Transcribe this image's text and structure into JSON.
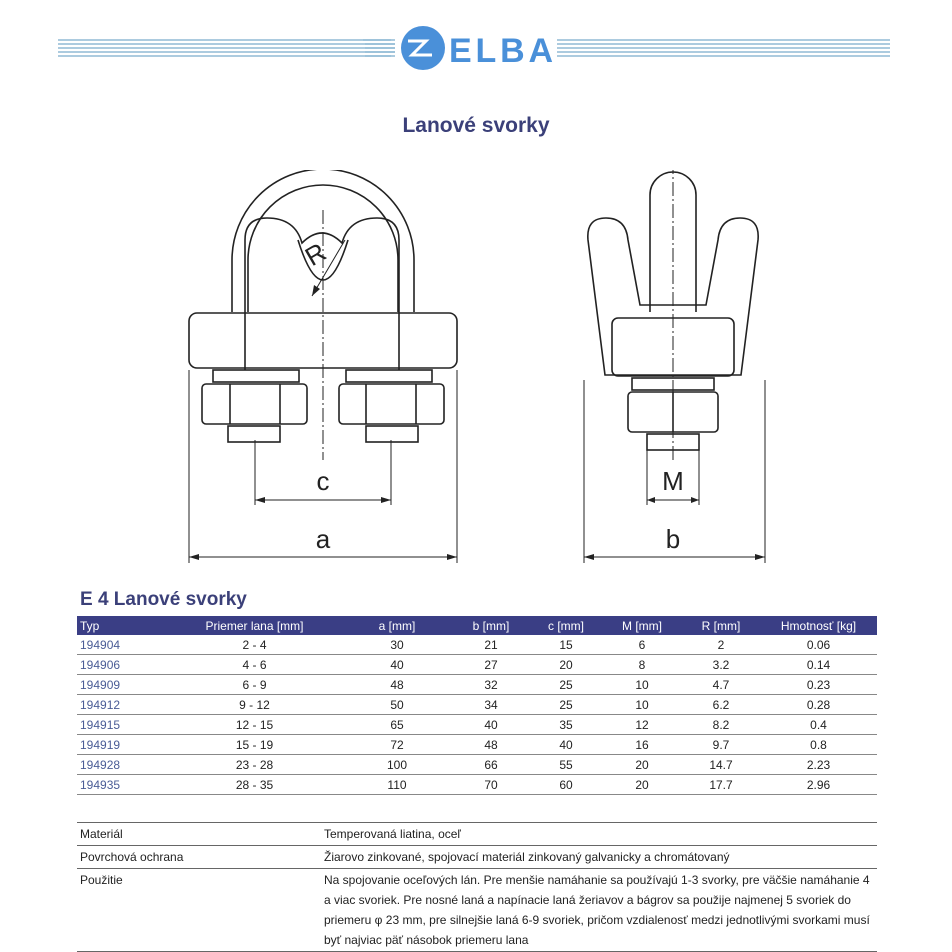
{
  "brand": {
    "name": "ELBA",
    "logo_mark": "ZL",
    "color": "#4a90d9",
    "line_color": "#6fa8c8"
  },
  "title": "Lanové svorky",
  "drawing": {
    "labels": {
      "c": "c",
      "a": "a",
      "b": "b",
      "M": "M",
      "R": "R"
    }
  },
  "section_title": "E 4 Lanové svorky",
  "spec_table": {
    "headers": [
      "Typ",
      "Priemer lana [mm]",
      "a [mm]",
      "b [mm]",
      "c [mm]",
      "M [mm]",
      "R [mm]",
      "Hmotnosť [kg]"
    ],
    "rows": [
      [
        "194904",
        "2 - 4",
        "30",
        "21",
        "15",
        "6",
        "2",
        "0.06"
      ],
      [
        "194906",
        "4 - 6",
        "40",
        "27",
        "20",
        "8",
        "3.2",
        "0.14"
      ],
      [
        "194909",
        "6 - 9",
        "48",
        "32",
        "25",
        "10",
        "4.7",
        "0.23"
      ],
      [
        "194912",
        "9 - 12",
        "50",
        "34",
        "25",
        "10",
        "6.2",
        "0.28"
      ],
      [
        "194915",
        "12 - 15",
        "65",
        "40",
        "35",
        "12",
        "8.2",
        "0.4"
      ],
      [
        "194919",
        "15 - 19",
        "72",
        "48",
        "40",
        "16",
        "9.7",
        "0.8"
      ],
      [
        "194928",
        "23 - 28",
        "100",
        "66",
        "55",
        "20",
        "14.7",
        "2.23"
      ],
      [
        "194935",
        "28 - 35",
        "110",
        "70",
        "60",
        "20",
        "17.7",
        "2.96"
      ]
    ]
  },
  "info_table": [
    {
      "label": "Materiál",
      "value": "Temperovaná liatina, oceľ"
    },
    {
      "label": "Povrchová ochrana",
      "value": "Žiarovo zinkované, spojovací materiál zinkovaný galvanicky a chromátovaný"
    },
    {
      "label": "Použitie",
      "value": "Na spojovanie oceľových lán. Pre menšie namáhanie sa používajú 1-3 svorky, pre väčšie namáhanie 4 a viac svoriek. Pre nosné laná a napínacie laná žeriavov a bágrov sa použije najmenej 5 svoriek do priemeru φ 23 mm, pre silnejšie laná 6-9 svoriek, pričom vzdialenosť medzi jednotlivými svorkami musí byť najviac päť násobok priemeru lana"
    }
  ]
}
